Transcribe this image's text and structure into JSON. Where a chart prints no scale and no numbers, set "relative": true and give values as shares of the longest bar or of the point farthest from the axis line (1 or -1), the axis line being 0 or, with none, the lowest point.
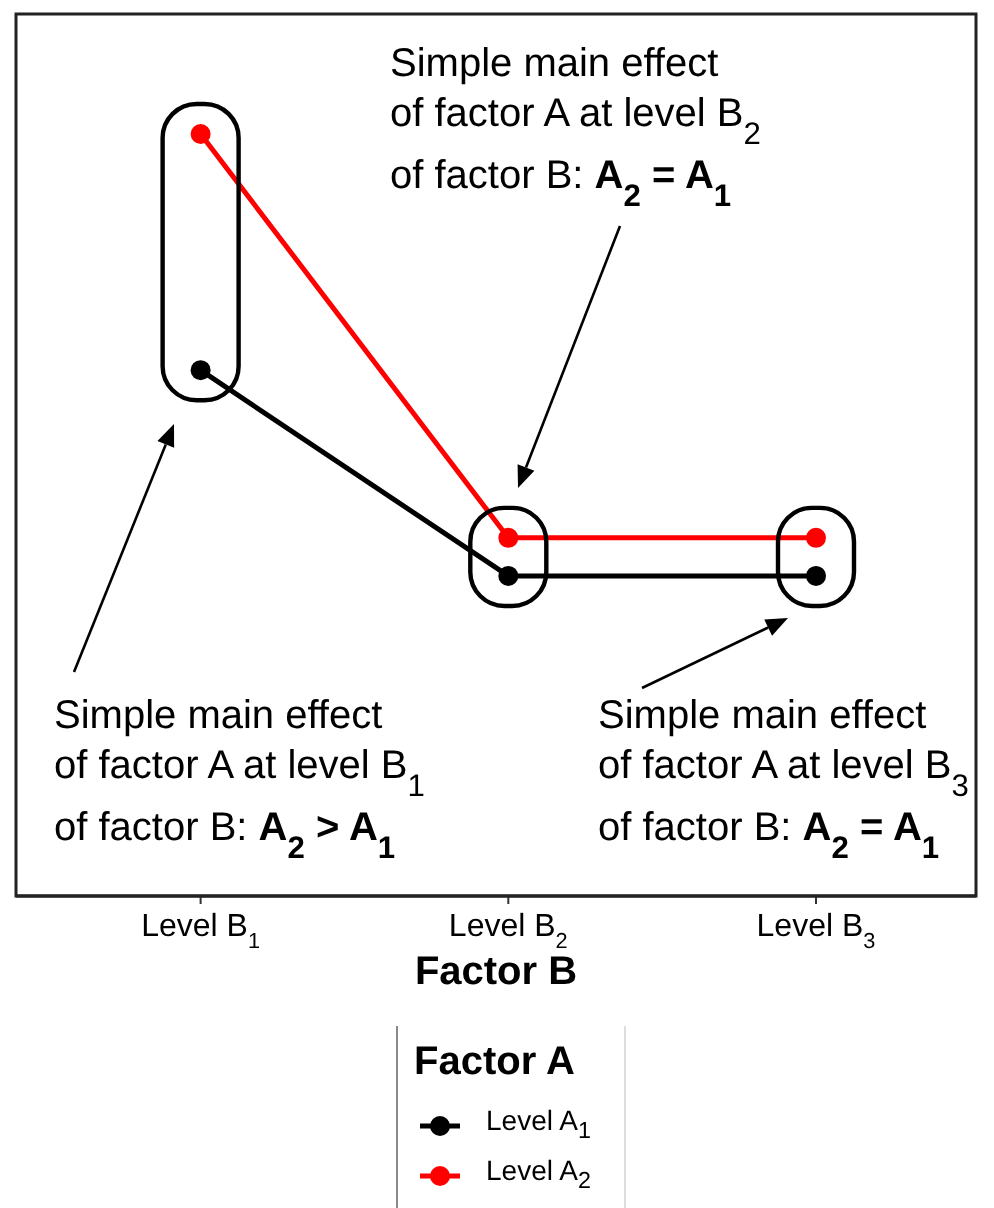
{
  "chart_data": {
    "type": "line",
    "relative": true,
    "categories": [
      "Level B$_{1}$",
      "Level B$_{2}$",
      "Level B$_{3}$"
    ],
    "series": [
      {
        "name": "Level A$_{1}$",
        "color": "#000000",
        "values": [
          0.69,
          0.42,
          0.42
        ]
      },
      {
        "name": "Level A$_{2}$",
        "color": "#ff0000",
        "values": [
          1,
          0.47,
          0.47
        ]
      }
    ],
    "xlabel": "Factor B",
    "legend_title": "Factor A",
    "legend": "bottom",
    "marker": "circle",
    "line_style": "solid",
    "annotations": [
      "Simple main effect\nof factor A at level B$_{2}$\nof factor B: A$_{2}$ = A$_{1}$",
      "Simple main effect\nof factor A at level B$_{1}$\nof factor B: A$_{2}$ > A$_{1}$",
      "Simple main effect\nof factor A at level B$_{3}$\nof factor B: A$_{2}$ = A$_{1}$"
    ]
  }
}
